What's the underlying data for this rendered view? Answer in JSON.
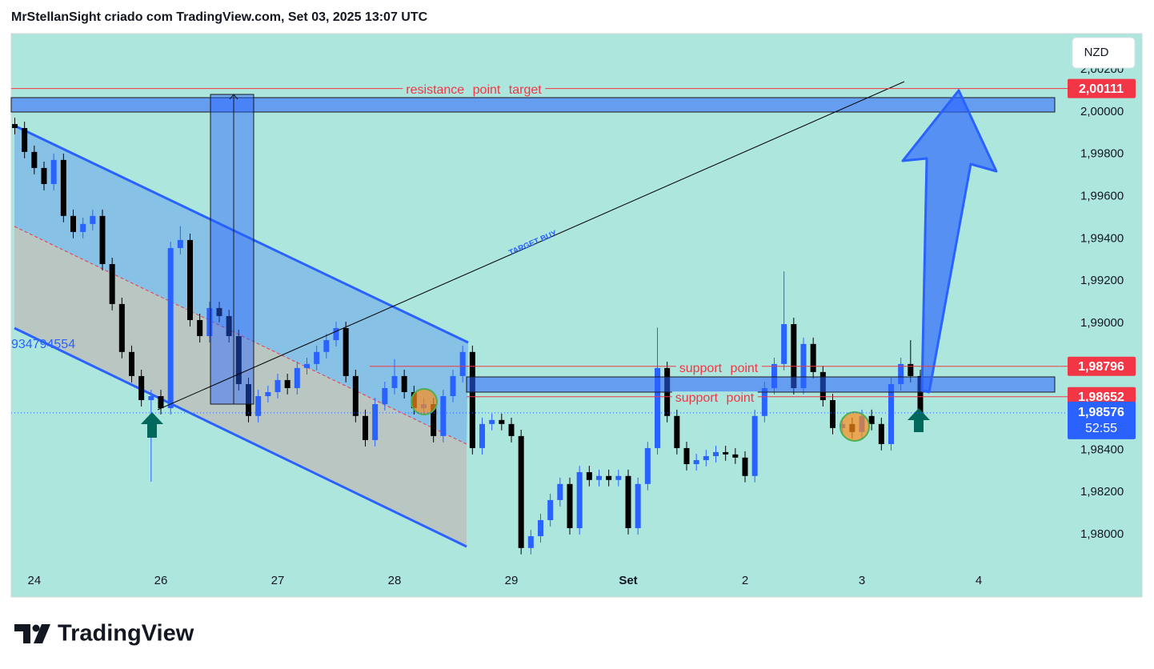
{
  "header": {
    "title": "MrStellanSight criado com TradingView.com, Set 03, 2025 13:07 UTC"
  },
  "footer": {
    "logo": "TradingView"
  },
  "chart_data": {
    "type": "candlestick",
    "currency": "NZD",
    "up_color": "#2962ff",
    "down_color": "#000000",
    "categories": [
      null,
      null,
      "24",
      null,
      null,
      null,
      null,
      null,
      null,
      null,
      null,
      null,
      null,
      null,
      null,
      "26",
      null,
      null,
      null,
      null,
      null,
      null,
      null,
      null,
      null,
      null,
      null,
      "27",
      null,
      null,
      null,
      null,
      null,
      null,
      null,
      null,
      null,
      null,
      null,
      "28",
      null,
      null,
      null,
      null,
      null,
      null,
      null,
      null,
      null,
      null,
      null,
      "29",
      null,
      null,
      null,
      null,
      null,
      null,
      null,
      null,
      null,
      null,
      null,
      "Set",
      null,
      null,
      null,
      null,
      null,
      null,
      null,
      null,
      null,
      null,
      null,
      "2",
      null,
      null,
      null,
      null,
      null,
      null,
      null,
      null,
      null,
      null,
      null,
      "3",
      null,
      null,
      null,
      null,
      null,
      null,
      null,
      null,
      null,
      null,
      null,
      "4",
      null,
      null,
      null,
      null,
      null,
      null,
      null,
      null
    ],
    "open": [
      1.99943,
      1.99924,
      1.99811,
      1.99735,
      1.99659,
      1.99773,
      1.99508,
      1.99432,
      1.9947,
      1.99508,
      1.9928,
      1.99091,
      1.98864,
      1.9875,
      1.98636,
      1.98655,
      1.98598,
      1.99356,
      1.99394,
      1.99015,
      1.98939,
      1.99072,
      1.99034,
      1.98939,
      1.98712,
      1.98561,
      1.98655,
      1.98674,
      1.98731,
      1.98693,
      1.98788,
      1.98807,
      1.98864,
      1.9892,
      1.98977,
      1.9875,
      1.98561,
      1.98447,
      1.98617,
      1.98693,
      1.9875,
      1.98674,
      1.98598,
      1.98617,
      1.98466,
      1.98655,
      1.9875,
      1.98864,
      1.98409,
      1.98523,
      1.98542,
      1.98523,
      1.98466,
      1.97936,
      1.97992,
      1.98068,
      1.98163,
      1.98239,
      1.9803,
      1.98295,
      1.98258,
      1.98277,
      1.98258,
      1.98277,
      1.9803,
      1.98239,
      1.98409,
      1.98788,
      1.98561,
      1.98409,
      1.98333,
      1.98352,
      1.98371,
      1.9839,
      1.98379,
      1.98364,
      1.98277,
      1.98561,
      1.98693,
      1.98807,
      1.98996,
      1.98693,
      1.98902,
      1.98769,
      1.98636,
      1.98504,
      1.98523,
      1.98485,
      1.98561,
      1.98523,
      1.98428,
      1.98712,
      1.98807,
      1.9875,
      null,
      null,
      null,
      null,
      null,
      null,
      null,
      null,
      null,
      null,
      null,
      null,
      null,
      null
    ],
    "high": [
      1.99973,
      1.99954,
      1.99841,
      1.99765,
      1.99803,
      1.99803,
      1.99538,
      1.995,
      1.99538,
      1.99538,
      1.9931,
      1.99121,
      1.98894,
      1.9878,
      1.98685,
      1.98685,
      1.99386,
      1.9946,
      1.99424,
      1.99045,
      1.99102,
      1.99102,
      1.99064,
      1.98969,
      1.98742,
      1.98685,
      1.98704,
      1.98761,
      1.98761,
      1.98818,
      1.98837,
      1.98894,
      1.9895,
      1.99007,
      1.99007,
      1.9878,
      1.98591,
      1.98647,
      1.98723,
      1.9883,
      1.9878,
      1.98704,
      1.98647,
      1.98647,
      1.98685,
      1.9878,
      1.98894,
      1.98894,
      1.98553,
      1.98572,
      1.98572,
      1.98553,
      1.98496,
      1.98022,
      1.98098,
      1.98193,
      1.98269,
      1.98269,
      1.98325,
      1.98325,
      1.98307,
      1.98307,
      1.98307,
      1.98307,
      1.98269,
      1.98439,
      1.9898,
      1.98818,
      1.98591,
      1.98439,
      1.98382,
      1.98401,
      1.9842,
      1.9842,
      1.98409,
      1.98394,
      1.98591,
      1.98723,
      1.98837,
      1.99246,
      1.99026,
      1.98932,
      1.98932,
      1.98799,
      1.98666,
      1.98553,
      1.98553,
      1.98591,
      1.98591,
      1.98553,
      1.98742,
      1.98837,
      1.9892,
      1.9878,
      null,
      null,
      null,
      null,
      null,
      null,
      null,
      null,
      null,
      null,
      null,
      null,
      null,
      null
    ],
    "low": [
      1.99894,
      1.99781,
      1.99705,
      1.99629,
      1.99629,
      1.99478,
      1.99402,
      1.99402,
      1.9944,
      1.9925,
      1.99061,
      1.98834,
      1.9872,
      1.98606,
      1.9825,
      1.98568,
      1.98568,
      1.99326,
      1.98985,
      1.98909,
      1.98909,
      1.99004,
      1.98909,
      1.98682,
      1.98531,
      1.98531,
      1.98625,
      1.98644,
      1.98663,
      1.98663,
      1.98758,
      1.98777,
      1.98834,
      1.9889,
      1.9872,
      1.98531,
      1.98417,
      1.98417,
      1.98587,
      1.98663,
      1.98644,
      1.98568,
      1.98568,
      1.98436,
      1.98436,
      1.98625,
      1.9872,
      1.98379,
      1.98379,
      1.98493,
      1.98493,
      1.98436,
      1.97906,
      1.97906,
      1.97962,
      1.98038,
      1.98133,
      1.98,
      1.98,
      1.98228,
      1.98228,
      1.98228,
      1.98228,
      1.98,
      1.98,
      1.98209,
      1.98379,
      1.98531,
      1.98379,
      1.98303,
      1.98303,
      1.98322,
      1.98341,
      1.98349,
      1.98334,
      1.98247,
      1.98247,
      1.98531,
      1.98663,
      1.98777,
      1.98663,
      1.98663,
      1.98739,
      1.98606,
      1.98474,
      1.98474,
      1.98455,
      1.98455,
      1.98493,
      1.98398,
      1.98398,
      1.98682,
      1.9872,
      1.98546,
      null,
      null,
      null,
      null,
      null,
      null,
      null,
      null,
      null,
      null,
      null,
      null,
      null,
      null
    ],
    "close": [
      1.99924,
      1.99811,
      1.99735,
      1.99659,
      1.99773,
      1.99508,
      1.99432,
      1.9947,
      1.99508,
      1.9928,
      1.99091,
      1.98864,
      1.9875,
      1.98636,
      1.98655,
      1.98598,
      1.99356,
      1.99394,
      1.99015,
      1.98939,
      1.99072,
      1.99034,
      1.98939,
      1.98712,
      1.98561,
      1.98655,
      1.98674,
      1.98731,
      1.98693,
      1.98788,
      1.98807,
      1.98864,
      1.9892,
      1.98977,
      1.9875,
      1.98561,
      1.98447,
      1.98617,
      1.98693,
      1.9875,
      1.98674,
      1.98598,
      1.98617,
      1.98466,
      1.98655,
      1.9875,
      1.98864,
      1.98409,
      1.98523,
      1.98542,
      1.98523,
      1.98466,
      1.97936,
      1.97992,
      1.98068,
      1.98163,
      1.98239,
      1.9803,
      1.98295,
      1.98258,
      1.98277,
      1.98258,
      1.98277,
      1.9803,
      1.98239,
      1.98409,
      1.98788,
      1.98561,
      1.98409,
      1.98333,
      1.98352,
      1.98371,
      1.9839,
      1.98379,
      1.98364,
      1.98277,
      1.98561,
      1.98693,
      1.98807,
      1.98996,
      1.98693,
      1.98902,
      1.98769,
      1.98636,
      1.98504,
      1.98523,
      1.98485,
      1.98561,
      1.98523,
      1.98428,
      1.98712,
      1.98807,
      1.9875,
      1.98576,
      null,
      null,
      null,
      null,
      null,
      null,
      null,
      null,
      null,
      null,
      null,
      null,
      null,
      null
    ],
    "ylim": [
      1.97708,
      2.00371
    ],
    "yticks": [
      {
        "value": 1.98,
        "label": "1,98000"
      },
      {
        "value": 1.982,
        "label": "1,98200"
      },
      {
        "value": 1.984,
        "label": "1,98400"
      },
      {
        "value": 1.986,
        "label": "1,98600"
      },
      {
        "value": 1.988,
        "label": "1,98800"
      },
      {
        "value": 1.99,
        "label": "1,99000"
      },
      {
        "value": 1.992,
        "label": "1,99200"
      },
      {
        "value": 1.994,
        "label": "1,99400"
      },
      {
        "value": 1.996,
        "label": "1,99600"
      },
      {
        "value": 1.998,
        "label": "1,99800"
      },
      {
        "value": 2.0,
        "label": "2,00000"
      },
      {
        "value": 2.002,
        "label": "2,00200"
      }
    ],
    "price_line_color": "#f23645",
    "price_lines": [
      {
        "value": 2.00111,
        "label": "2,00111"
      },
      {
        "value": 1.98796,
        "label": "1,98796"
      },
      {
        "value": 1.98652,
        "label": "1,98652"
      }
    ],
    "current_price": {
      "value": 1.98576,
      "label": "1,98576",
      "countdown": "52:55",
      "color": "#2962ff"
    },
    "annotations": [
      "resistance point target",
      "support point",
      "support point",
      "TARGET BUY",
      "934794554"
    ]
  }
}
